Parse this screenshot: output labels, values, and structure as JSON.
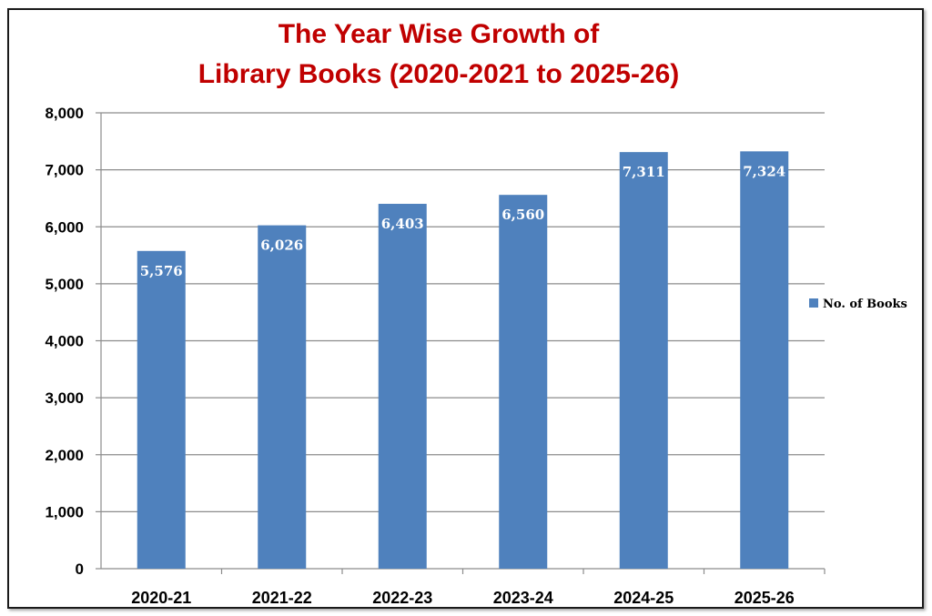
{
  "chart_data": {
    "type": "bar",
    "title_lines": [
      "The Year Wise Growth of",
      "Library Books (2020-2021 to 2025-26)"
    ],
    "categories": [
      "2020-21",
      "2021-22",
      "2022-23",
      "2023-24",
      "2024-25",
      "2025-26"
    ],
    "series": [
      {
        "name": "No. of Books",
        "values": [
          5576,
          6026,
          6403,
          6560,
          7311,
          7324
        ],
        "labels": [
          "5,576",
          "6,026",
          "6,403",
          "6,560",
          "7,311",
          "7,324"
        ]
      }
    ],
    "ylim": [
      0,
      8000
    ],
    "yticks": [
      0,
      1000,
      2000,
      3000,
      4000,
      5000,
      6000,
      7000,
      8000
    ],
    "ytick_labels": [
      "0",
      "1,000",
      "2,000",
      "3,000",
      "4,000",
      "5,000",
      "6,000",
      "7,000",
      "8,000"
    ],
    "grid": true,
    "legend_position": "right",
    "colors": {
      "bar": "#4f81bd",
      "title": "#c00000",
      "grid": "#8c8c8c"
    }
  }
}
